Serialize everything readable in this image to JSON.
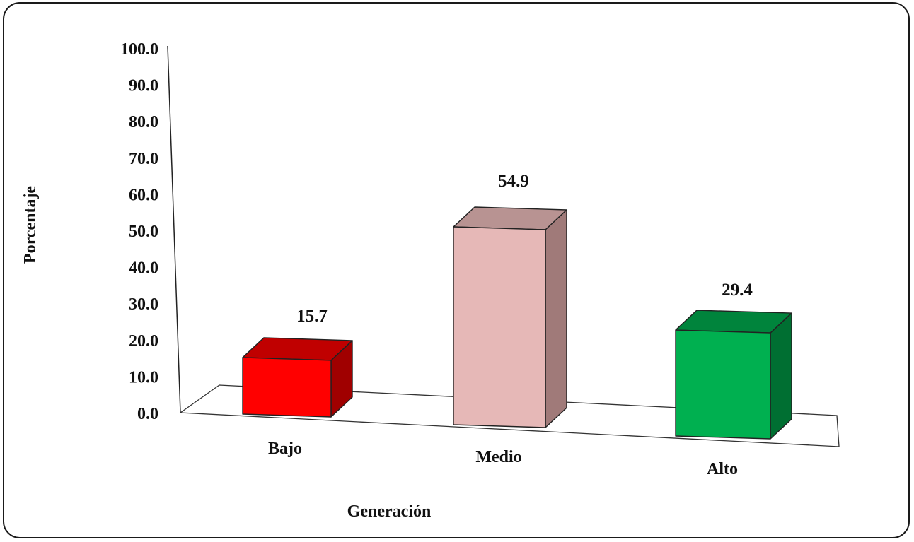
{
  "chart_data": {
    "type": "bar",
    "categories": [
      "Bajo",
      "Medio",
      "Alto"
    ],
    "values": [
      15.7,
      54.9,
      29.4
    ],
    "data_labels": [
      "15.7",
      "54.9",
      "29.4"
    ],
    "title": "",
    "xlabel": "Generación",
    "ylabel": "Porcentaje",
    "ylim": [
      0,
      100
    ],
    "yticks": [
      "0.0",
      "10.0",
      "20.0",
      "30.0",
      "40.0",
      "50.0",
      "60.0",
      "70.0",
      "80.0",
      "90.0",
      "100.0"
    ],
    "grid": false,
    "legend": "none",
    "style": "3d-column",
    "colors": [
      {
        "front": "#ff0000",
        "top": "#c00000",
        "side": "#a00000"
      },
      {
        "front": "#e6b8b7",
        "top": "#b89392",
        "side": "#a07a79"
      },
      {
        "front": "#00b050",
        "top": "#00843c",
        "side": "#006f32"
      }
    ]
  }
}
